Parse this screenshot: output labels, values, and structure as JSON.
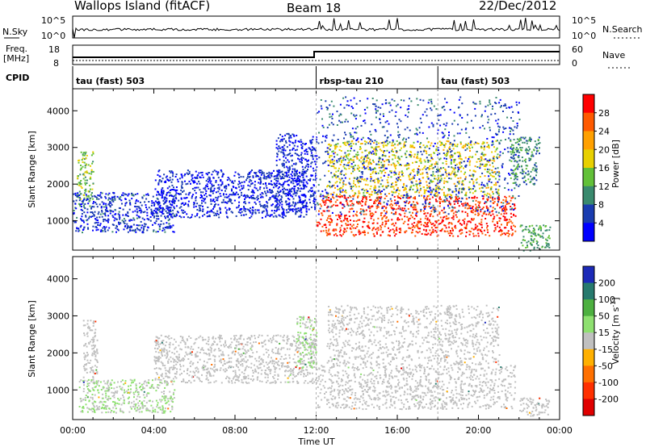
{
  "header": {
    "site": "Wallops Island (fitACF)",
    "beam": "Beam 18",
    "date": "22/Dec/2012"
  },
  "left_labels": {
    "nsky": "N.Sky",
    "freq_line1": "Freq.",
    "freq_line2": "[MHz]",
    "cpid": "CPID"
  },
  "right_labels": {
    "nsearch": "N.Search",
    "nave": "Nave"
  },
  "noise_panel": {
    "y_ticks": [
      "10^5",
      "10^0"
    ],
    "y2_ticks": [
      "10^5",
      "10^0"
    ]
  },
  "freq_panel": {
    "y_ticks": [
      "18",
      "8"
    ],
    "y2_ticks": [
      "60",
      "0"
    ]
  },
  "cpid_segments": [
    {
      "label": "tau (fast) 503",
      "start_hour": 0
    },
    {
      "label": "rbsp-tau 210",
      "start_hour": 12
    },
    {
      "label": "tau (fast) 503",
      "start_hour": 18
    }
  ],
  "power_colorbar": {
    "label": "Power [dB]",
    "ticks": [
      "28",
      "24",
      "20",
      "16",
      "12",
      "8",
      "4"
    ],
    "colors": [
      "#ff0000",
      "#ff5a00",
      "#ffa000",
      "#e8d000",
      "#62c038",
      "#3a8a6e",
      "#1a3cb0",
      "#0000ff"
    ]
  },
  "velocity_colorbar": {
    "label_main": "Velocity [m s",
    "label_sup": "-1",
    "label_end": "]",
    "ticks": [
      "200",
      "100",
      "50",
      "15",
      "-15",
      "-50",
      "-100",
      "-200"
    ],
    "colors": [
      "#1c2ab8",
      "#277a6e",
      "#4db040",
      "#8ee070",
      "#c0c0c0",
      "#ffb000",
      "#ff7000",
      "#ff3000",
      "#e00000"
    ]
  },
  "axes": {
    "ylabel": "Slant Range [km]",
    "xlabel": "Time UT",
    "x_tick_labels": [
      "00:00",
      "04:00",
      "08:00",
      "12:00",
      "16:00",
      "20:00",
      "00:00"
    ],
    "y_tick_labels": [
      "1000",
      "2000",
      "3000",
      "4000"
    ]
  },
  "chart_data": {
    "type": "heatmap",
    "title": "Wallops Island (fitACF)",
    "xlabel": "Time UT",
    "ylabel": "Slant Range [km]",
    "xlim_hours": [
      0,
      24
    ],
    "ylim_km": [
      200,
      4600
    ],
    "panels": [
      {
        "name": "Power",
        "unit": "dB",
        "clim": [
          0,
          32
        ],
        "regions": [
          {
            "t": [
              0.2,
              1.0
            ],
            "r": [
              1400,
              2900
            ],
            "v": 14
          },
          {
            "t": [
              0.0,
              5.0
            ],
            "r": [
              700,
              1800
            ],
            "v": 5
          },
          {
            "t": [
              4.0,
              11.5
            ],
            "r": [
              1100,
              2400
            ],
            "v": 4
          },
          {
            "t": [
              10.0,
              12.0
            ],
            "r": [
              1300,
              3400
            ],
            "v": 4
          },
          {
            "t": [
              12.0,
              21.8
            ],
            "r": [
              600,
              1700
            ],
            "v": 28
          },
          {
            "t": [
              12.5,
              21.0
            ],
            "r": [
              1700,
              3200
            ],
            "v": 18
          },
          {
            "t": [
              12.0,
              22.0
            ],
            "r": [
              1200,
              4400
            ],
            "v": 6
          },
          {
            "t": [
              22.0,
              23.5
            ],
            "r": [
              200,
              900
            ],
            "v": 12
          },
          {
            "t": [
              21.5,
              23.0
            ],
            "r": [
              2000,
              3300
            ],
            "v": 10
          }
        ]
      },
      {
        "name": "Velocity",
        "unit": "m s-1",
        "clim": [
          -250,
          250
        ],
        "regions": [
          {
            "t": [
              0.5,
              1.2
            ],
            "r": [
              1200,
              2900
            ],
            "v": 0
          },
          {
            "t": [
              0.3,
              5.0
            ],
            "r": [
              400,
              1300
            ],
            "v": 30
          },
          {
            "t": [
              4.0,
              12.0
            ],
            "r": [
              1200,
              2500
            ],
            "v": 0
          },
          {
            "t": [
              11.0,
              12.0
            ],
            "r": [
              1600,
              3000
            ],
            "v": 30
          },
          {
            "t": [
              12.0,
              21.8
            ],
            "r": [
              500,
              1700
            ],
            "v": 0
          },
          {
            "t": [
              12.5,
              21.0
            ],
            "r": [
              1700,
              3300
            ],
            "v": 0
          },
          {
            "t": [
              22.0,
              23.5
            ],
            "r": [
              300,
              800
            ],
            "v": 0
          }
        ]
      }
    ]
  }
}
